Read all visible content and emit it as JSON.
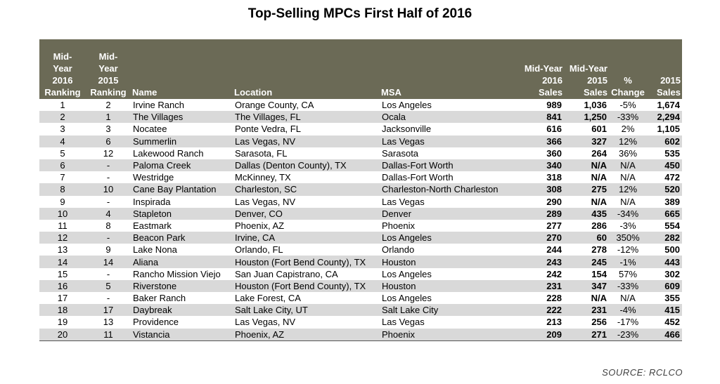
{
  "title": "Top-Selling MPCs First Half of 2016",
  "source": "SOURCE: RCLCO",
  "headers": [
    [
      "Mid-",
      "Year",
      "2016",
      "Ranking"
    ],
    [
      "Mid-",
      "Year",
      "2015",
      "Ranking"
    ],
    [
      "Name"
    ],
    [
      "Location"
    ],
    [
      "MSA"
    ],
    [
      "Mid-Year",
      "2016",
      "Sales"
    ],
    [
      "Mid-Year",
      "2015",
      "Sales"
    ],
    [
      "%",
      "Change"
    ],
    [
      "2015",
      "Sales"
    ]
  ],
  "rows": [
    [
      "1",
      "2",
      "Irvine Ranch",
      "Orange County, CA",
      "Los Angeles",
      "989",
      "1,036",
      "-5%",
      "1,674"
    ],
    [
      "2",
      "1",
      "The Villages",
      "The Villages, FL",
      "Ocala",
      "841",
      "1,250",
      "-33%",
      "2,294"
    ],
    [
      "3",
      "3",
      "Nocatee",
      "Ponte Vedra, FL",
      "Jacksonville",
      "616",
      "601",
      "2%",
      "1,105"
    ],
    [
      "4",
      "6",
      "Summerlin",
      "Las Vegas, NV",
      "Las Vegas",
      "366",
      "327",
      "12%",
      "602"
    ],
    [
      "5",
      "12",
      "Lakewood Ranch",
      "Sarasota, FL",
      "Sarasota",
      "360",
      "264",
      "36%",
      "535"
    ],
    [
      "6",
      "-",
      "Paloma Creek",
      "Dallas (Denton County), TX",
      "Dallas-Fort Worth",
      "340",
      "N/A",
      "N/A",
      "450"
    ],
    [
      "7",
      "-",
      "Westridge",
      "McKinney, TX",
      "Dallas-Fort Worth",
      "318",
      "N/A",
      "N/A",
      "472"
    ],
    [
      "8",
      "10",
      "Cane Bay Plantation",
      "Charleston, SC",
      "Charleston-North Charleston",
      "308",
      "275",
      "12%",
      "520"
    ],
    [
      "9",
      "-",
      "Inspirada",
      "Las Vegas, NV",
      "Las Vegas",
      "290",
      "N/A",
      "N/A",
      "389"
    ],
    [
      "10",
      "4",
      "Stapleton",
      "Denver, CO",
      "Denver",
      "289",
      "435",
      "-34%",
      "665"
    ],
    [
      "11",
      "8",
      "Eastmark",
      "Phoenix, AZ",
      "Phoenix",
      "277",
      "286",
      "-3%",
      "554"
    ],
    [
      "12",
      "-",
      "Beacon Park",
      "Irvine, CA",
      "Los Angeles",
      "270",
      "60",
      "350%",
      "282"
    ],
    [
      "13",
      "9",
      "Lake Nona",
      "Orlando, FL",
      "Orlando",
      "244",
      "278",
      "-12%",
      "500"
    ],
    [
      "14",
      "14",
      "Aliana",
      "Houston (Fort Bend County), TX",
      "Houston",
      "243",
      "245",
      "-1%",
      "443"
    ],
    [
      "15",
      "-",
      "Rancho Mission Viejo",
      "San Juan Capistrano, CA",
      "Los Angeles",
      "242",
      "154",
      "57%",
      "302"
    ],
    [
      "16",
      "5",
      "Riverstone",
      "Houston (Fort Bend County), TX",
      "Houston",
      "231",
      "347",
      "-33%",
      "609"
    ],
    [
      "17",
      "-",
      "Baker Ranch",
      "Lake Forest, CA",
      "Los Angeles",
      "228",
      "N/A",
      "N/A",
      "355"
    ],
    [
      "18",
      "17",
      "Daybreak",
      "Salt Lake City, UT",
      "Salt Lake City",
      "222",
      "231",
      "-4%",
      "415"
    ],
    [
      "19",
      "13",
      "Providence",
      "Las Vegas, NV",
      "Las Vegas",
      "213",
      "256",
      "-17%",
      "452"
    ],
    [
      "20",
      "11",
      "Vistancia",
      "Phoenix, AZ",
      "Phoenix",
      "209",
      "271",
      "-23%",
      "466"
    ]
  ],
  "colors": {
    "header_bg": "#6b6a56",
    "stripe_bg": "#d9d9d9"
  }
}
